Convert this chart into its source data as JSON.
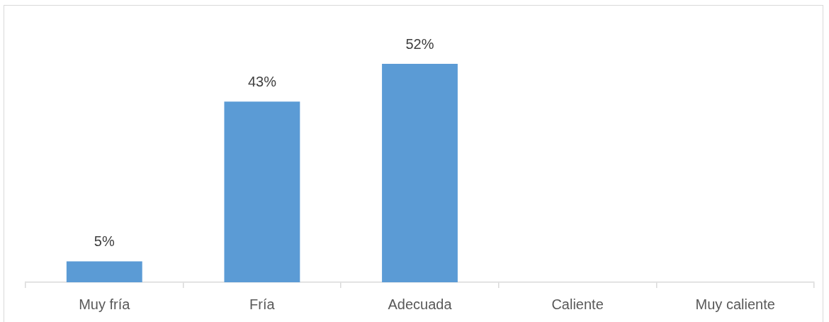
{
  "chart_data": {
    "type": "bar",
    "categories": [
      "Muy fría",
      "Fría",
      "Adecuada",
      "Caliente",
      "Muy caliente"
    ],
    "values": [
      5,
      43,
      52,
      null,
      null
    ],
    "color": "#5b9bd5",
    "value_labels": [
      "5%",
      "43%",
      "52%",
      null,
      null
    ]
  }
}
